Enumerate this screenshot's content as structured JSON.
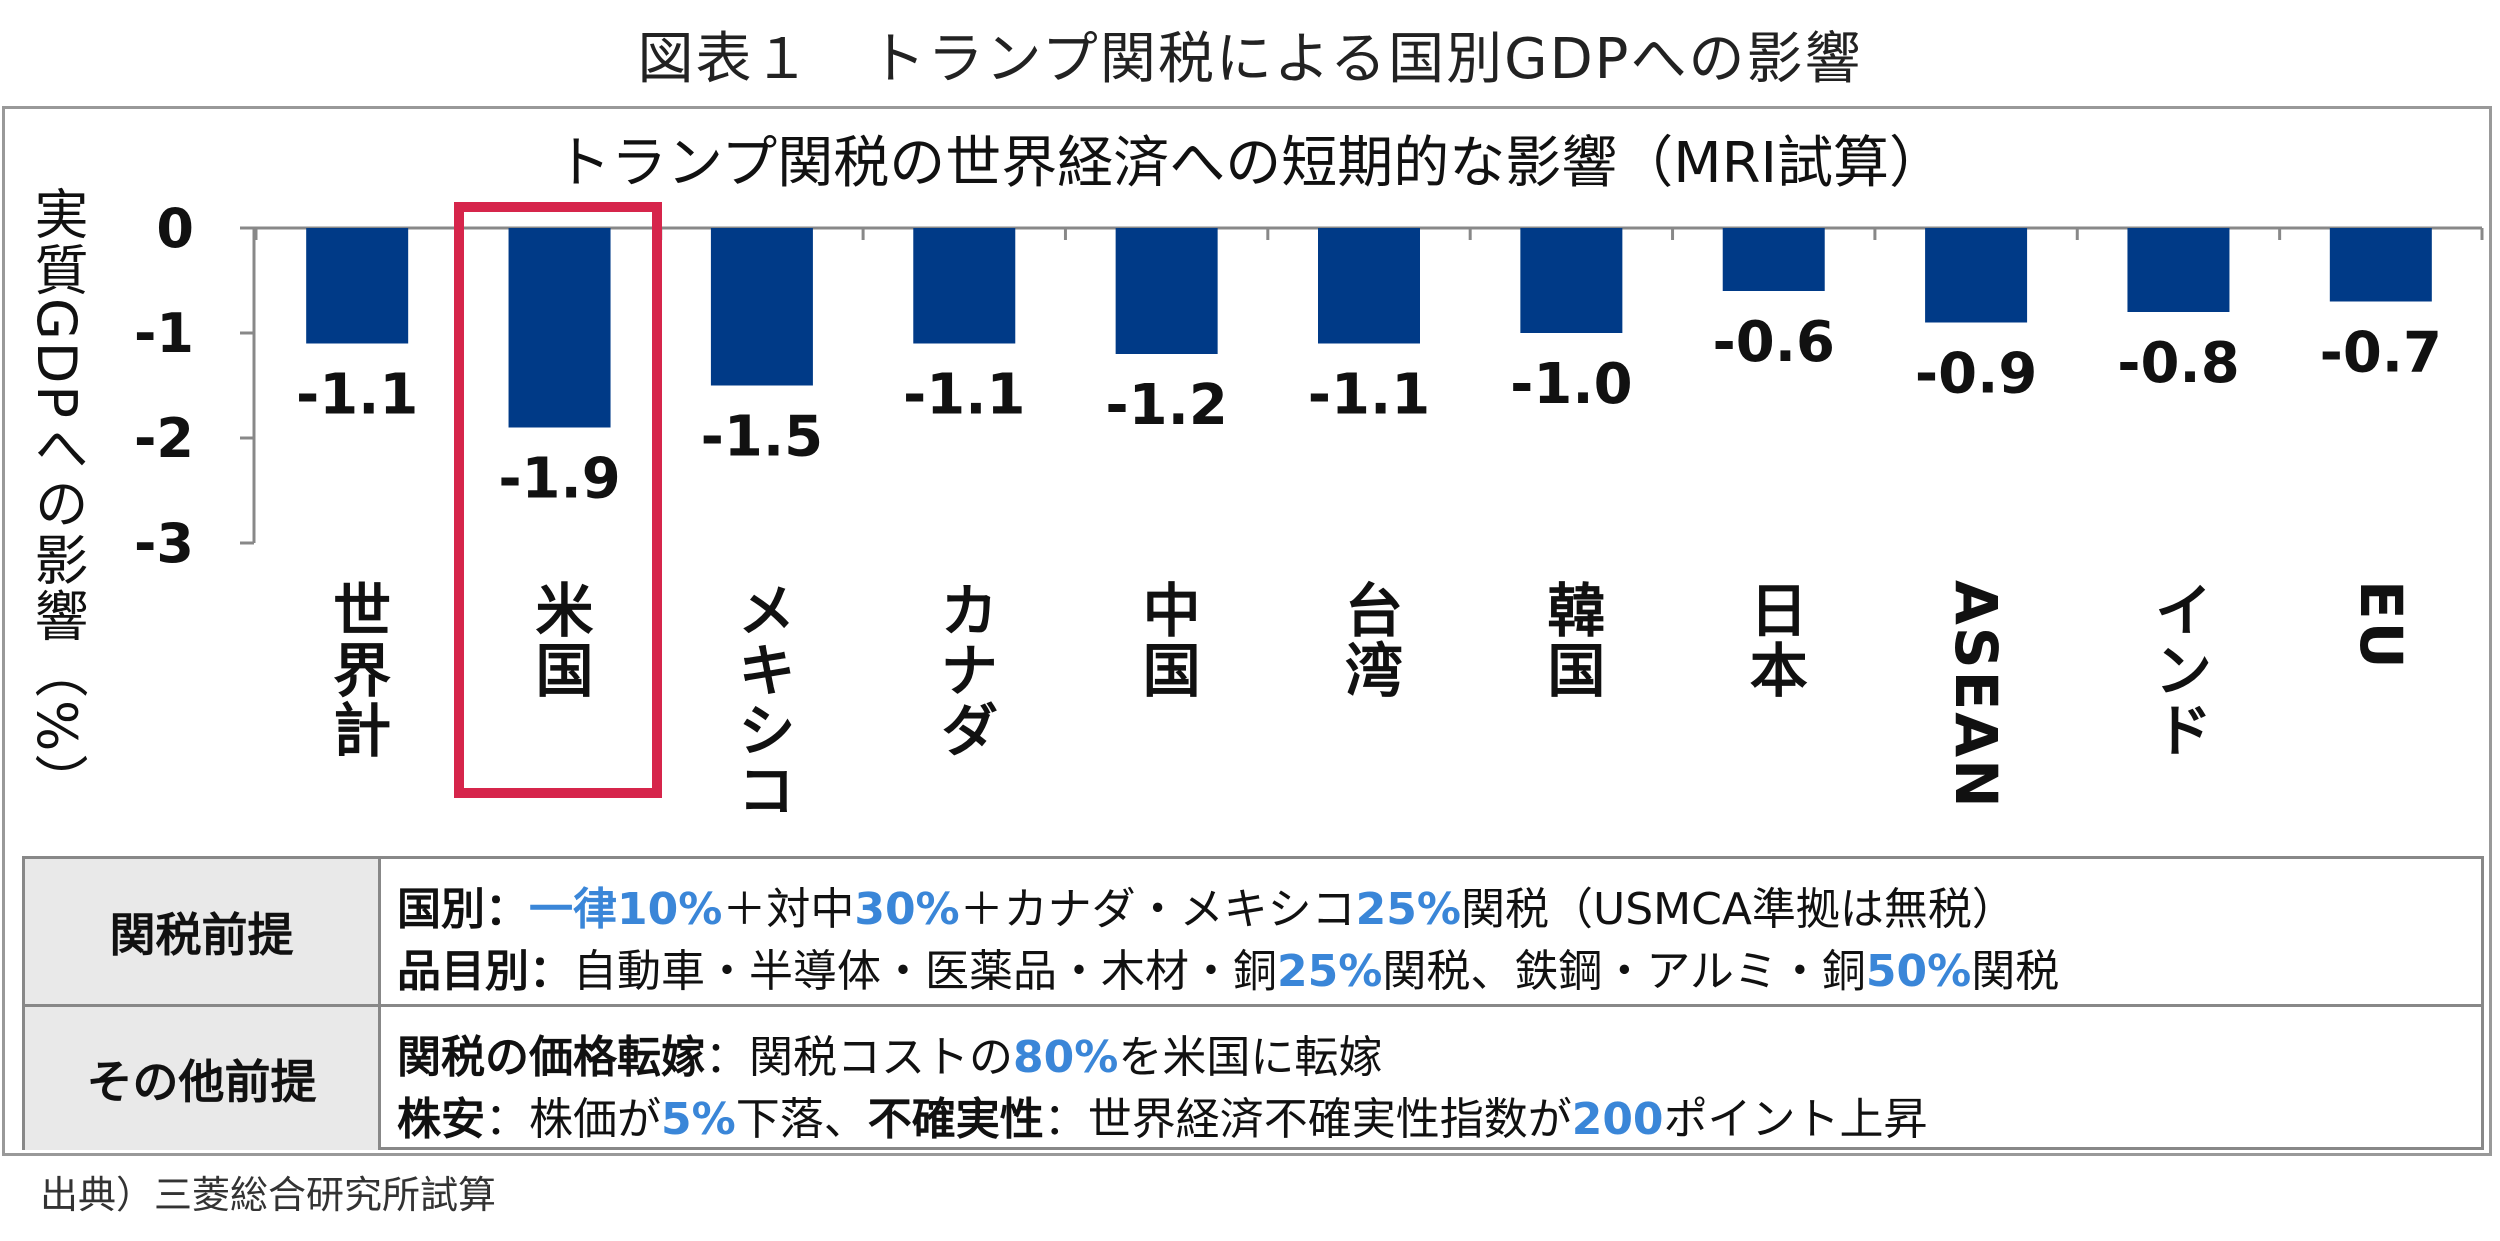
{
  "figure_title": "図表１　トランプ関税による国別GDPへの影響",
  "chart_data": {
    "type": "bar",
    "title": "トランプ関税の世界経済への短期的な影響（MRI試算）",
    "xlabel": "",
    "ylabel": "実質GDPへの影響（%）",
    "categories": [
      "世界計",
      "米国",
      "メキシコ",
      "カナダ",
      "中国",
      "台湾",
      "韓国",
      "日本",
      "ASEAN",
      "インド",
      "EU"
    ],
    "values": [
      -1.1,
      -1.9,
      -1.5,
      -1.1,
      -1.2,
      -1.1,
      -1.0,
      -0.6,
      -0.9,
      -0.8,
      -0.7
    ],
    "value_labels": [
      "-1.1",
      "-1.9",
      "-1.5",
      "-1.1",
      "-1.2",
      "-1.1",
      "-1.0",
      "-0.6",
      "-0.9",
      "-0.8",
      "-0.7"
    ],
    "yticks": [
      "0",
      "-1",
      "-2",
      "-3"
    ],
    "ylim": [
      -3,
      0
    ],
    "grid": false,
    "bar_color": "#003a87",
    "highlight_category": "米国",
    "highlight_color": "#d6254b"
  },
  "assumptions": {
    "row1": {
      "header": "関税前提",
      "line1": {
        "label": "国別：",
        "s1": "一律",
        "s2": "10%",
        "s3": "＋対中",
        "s4": "30%",
        "s5": "＋カナダ・メキシコ",
        "s6": "25%",
        "s7": "関税（USMCA準拠は無税）"
      },
      "line2": {
        "label": "品目別：",
        "s1": "自動車・半導体・医薬品・木材・銅",
        "s2": "25%",
        "s3": "関税、鉄鋼・アルミ・銅",
        "s4": "50%",
        "s5": "関税"
      }
    },
    "row2": {
      "header": "その他前提",
      "line1": {
        "label": "関税の価格転嫁",
        "s1": "：関税コストの",
        "s2": "80%",
        "s3": "を米国に転嫁"
      },
      "line2": {
        "label": "株安",
        "s1": "：株価が",
        "s2": "5%",
        "s3": "下落、",
        "label2": "不確実性",
        "s4": "：世界経済不確実性指数が",
        "s5": "200",
        "s6": "ポイント上昇"
      }
    }
  },
  "source": "出典）三菱総合研究所試算",
  "colors": {
    "accent_blue_text": "#3a86d8",
    "header_bg": "#e9e9e9",
    "border": "#888888"
  }
}
